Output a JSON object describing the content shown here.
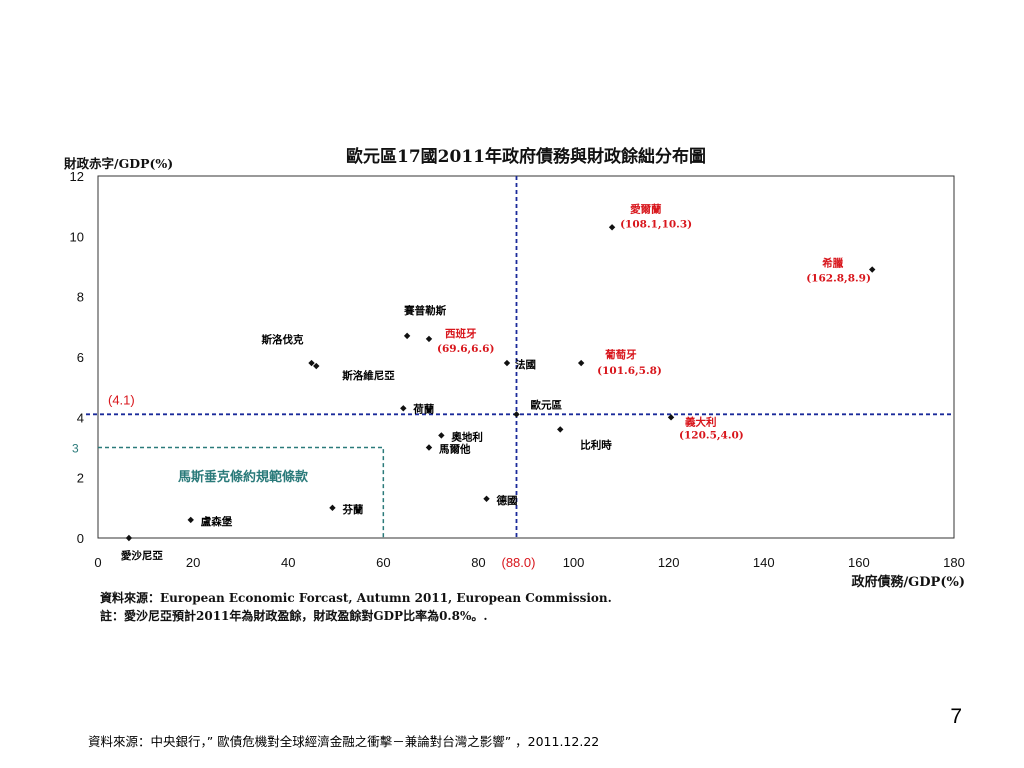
{
  "slide_number": "7",
  "footer_source": "資料來源：中央銀行，” 歐債危機對全球經濟金融之衝擊－兼論對台灣之影響” ，2011.12.22",
  "chart_data": {
    "type": "scatter",
    "title": "歐元區17國2011年政府債務與財政餘絀分布圖",
    "xlabel": "政府債務/GDP(%)",
    "ylabel": "財政赤字/GDP(%)",
    "xlim": [
      0,
      180
    ],
    "ylim": [
      0,
      12
    ],
    "x_ticks": [
      "0",
      "20",
      "40",
      "60",
      "80",
      "100",
      "120",
      "140",
      "160",
      "180"
    ],
    "y_ticks": [
      "0",
      "2",
      "4",
      "6",
      "8",
      "10",
      "12"
    ],
    "grid": false,
    "points": [
      {
        "name": "愛爾蘭",
        "x": 108.1,
        "y": 10.3,
        "value_label": "(108.1,10.3)",
        "highlight": true
      },
      {
        "name": "希臘",
        "x": 162.8,
        "y": 8.9,
        "value_label": "(162.8,8.9)",
        "highlight": true
      },
      {
        "name": "賽普勒斯",
        "x": 65,
        "y": 6.7,
        "value_label": "",
        "highlight": false
      },
      {
        "name": "西班牙",
        "x": 69.6,
        "y": 6.6,
        "value_label": "(69.6,6.6)",
        "highlight": true
      },
      {
        "name": "斯洛伐克",
        "x": 44.9,
        "y": 5.8,
        "value_label": "",
        "highlight": false
      },
      {
        "name": "斯洛維尼亞",
        "x": 45.9,
        "y": 5.7,
        "value_label": "",
        "highlight": false
      },
      {
        "name": "法國",
        "x": 86,
        "y": 5.8,
        "value_label": "",
        "highlight": false
      },
      {
        "name": "葡萄牙",
        "x": 101.6,
        "y": 5.8,
        "value_label": "(101.6,5.8)",
        "highlight": true
      },
      {
        "name": "荷蘭",
        "x": 64.2,
        "y": 4.3,
        "value_label": "",
        "highlight": false
      },
      {
        "name": "歐元區",
        "x": 88,
        "y": 4.1,
        "value_label": "",
        "highlight": false
      },
      {
        "name": "義大利",
        "x": 120.5,
        "y": 4.0,
        "value_label": "(120.5,4.0)",
        "highlight": true
      },
      {
        "name": "奧地利",
        "x": 72.2,
        "y": 3.4,
        "value_label": "",
        "highlight": false
      },
      {
        "name": "比利時",
        "x": 97.2,
        "y": 3.6,
        "value_label": "",
        "highlight": false
      },
      {
        "name": "馬爾他",
        "x": 69.6,
        "y": 3.0,
        "value_label": "",
        "highlight": false
      },
      {
        "name": "德國",
        "x": 81.7,
        "y": 1.3,
        "value_label": "",
        "highlight": false
      },
      {
        "name": "芬蘭",
        "x": 49.3,
        "y": 1.0,
        "value_label": "",
        "highlight": false
      },
      {
        "name": "盧森堡",
        "x": 19.5,
        "y": 0.6,
        "value_label": "",
        "highlight": false
      },
      {
        "name": "愛沙尼亞",
        "x": 6.5,
        "y": 0,
        "value_label": "",
        "highlight": false
      }
    ],
    "reference_lines": {
      "euro_area_debt": {
        "x": 88.0,
        "label": "(88.0)",
        "color": "#1a2a9a"
      },
      "euro_area_deficit": {
        "y": 4.1,
        "label": "(4.1)",
        "color": "#1a2a9a"
      }
    },
    "maastricht_box": {
      "x_max": 60,
      "y_max": 3,
      "y_label": "3",
      "label": "馬斯垂克條約規範條款",
      "color": "#2a7a7a"
    },
    "notes": [
      "資料來源：European Economic Forcast, Autumn 2011, European Commission.",
      "註：愛沙尼亞預計2011年為財政盈餘，財政盈餘對GDP比率為0.8%。."
    ],
    "colors": {
      "highlight": "#d8161c",
      "normal": "#000000",
      "marker": "#111111"
    }
  }
}
